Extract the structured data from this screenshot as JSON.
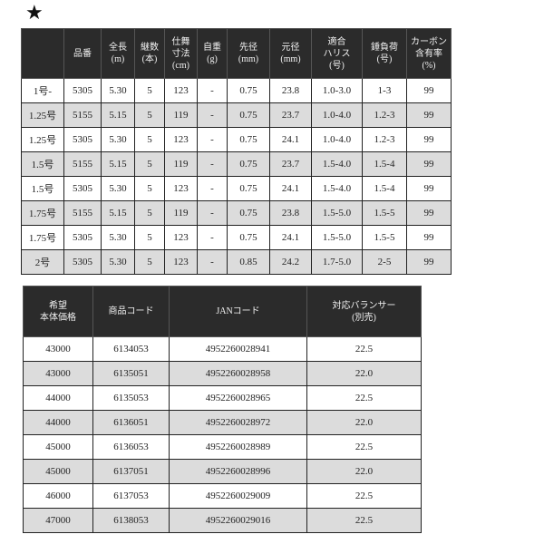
{
  "star_label": "★",
  "spec_table": {
    "headers": [
      "",
      "品番",
      "全長\n(m)",
      "継数\n(本)",
      "仕舞\n寸法\n(cm)",
      "自重\n(g)",
      "先径\n(mm)",
      "元径\n(mm)",
      "適合\nハリス\n(号)",
      "錘負荷\n(号)",
      "カーボン\n含有率\n(%)"
    ],
    "rows": [
      [
        "1号-",
        "5305",
        "5.30",
        "5",
        "123",
        "-",
        "0.75",
        "23.8",
        "1.0-3.0",
        "1-3",
        "99"
      ],
      [
        "1.25号",
        "5155",
        "5.15",
        "5",
        "119",
        "-",
        "0.75",
        "23.7",
        "1.0-4.0",
        "1.2-3",
        "99"
      ],
      [
        "1.25号",
        "5305",
        "5.30",
        "5",
        "123",
        "-",
        "0.75",
        "24.1",
        "1.0-4.0",
        "1.2-3",
        "99"
      ],
      [
        "1.5号",
        "5155",
        "5.15",
        "5",
        "119",
        "-",
        "0.75",
        "23.7",
        "1.5-4.0",
        "1.5-4",
        "99"
      ],
      [
        "1.5号",
        "5305",
        "5.30",
        "5",
        "123",
        "-",
        "0.75",
        "24.1",
        "1.5-4.0",
        "1.5-4",
        "99"
      ],
      [
        "1.75号",
        "5155",
        "5.15",
        "5",
        "119",
        "-",
        "0.75",
        "23.8",
        "1.5-5.0",
        "1.5-5",
        "99"
      ],
      [
        "1.75号",
        "5305",
        "5.30",
        "5",
        "123",
        "-",
        "0.75",
        "24.1",
        "1.5-5.0",
        "1.5-5",
        "99"
      ],
      [
        "2号",
        "5305",
        "5.30",
        "5",
        "123",
        "-",
        "0.85",
        "24.2",
        "1.7-5.0",
        "2-5",
        "99"
      ]
    ]
  },
  "price_table": {
    "headers": [
      "希望\n本体価格",
      "商品コード",
      "JANコード",
      "対応バランサー\n(別売)"
    ],
    "rows": [
      [
        "43000",
        "6134053",
        "4952260028941",
        "22.5"
      ],
      [
        "43000",
        "6135051",
        "4952260028958",
        "22.0"
      ],
      [
        "44000",
        "6135053",
        "4952260028965",
        "22.5"
      ],
      [
        "44000",
        "6136051",
        "4952260028972",
        "22.0"
      ],
      [
        "45000",
        "6136053",
        "4952260028989",
        "22.5"
      ],
      [
        "45000",
        "6137051",
        "4952260028996",
        "22.0"
      ],
      [
        "46000",
        "6137053",
        "4952260029009",
        "22.5"
      ],
      [
        "47000",
        "6138053",
        "4952260029016",
        "22.5"
      ]
    ]
  },
  "colors": {
    "header_bg": "#2b2b2b",
    "alt_row": "#dcdcdc"
  }
}
